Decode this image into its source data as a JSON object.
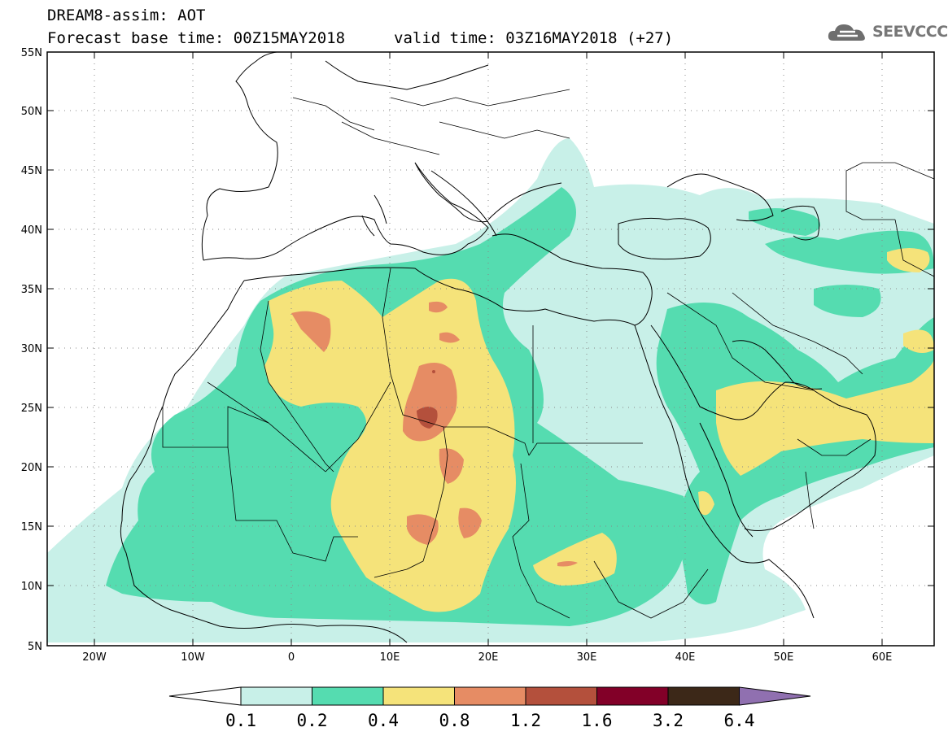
{
  "header": {
    "title": "DREAM8-assim: AOT",
    "base_time": "Forecast base time: 00Z15MAY2018",
    "valid_time": "valid time: 03Z16MAY2018 (+27)"
  },
  "logo": {
    "icon": "cloud-icon",
    "text": "SEEVCCC",
    "color": "#777777"
  },
  "map": {
    "lat_labels": [
      "55N",
      "50N",
      "45N",
      "40N",
      "35N",
      "30N",
      "25N",
      "20N",
      "15N",
      "10N",
      "5N"
    ],
    "lon_labels": [
      "20W",
      "10W",
      "0",
      "10E",
      "20E",
      "30E",
      "40E",
      "50E",
      "60E"
    ],
    "lat_range": [
      5,
      55
    ],
    "lon_range": [
      -25,
      65
    ],
    "grid": "dotted"
  },
  "colorbar": {
    "labels": [
      "0.1",
      "0.2",
      "0.4",
      "0.8",
      "1.2",
      "1.6",
      "3.2",
      "6.4"
    ],
    "colors": [
      "#c8f0e8",
      "#55dcb0",
      "#f5e37a",
      "#e68c64",
      "#b4503c",
      "#820028",
      "#3c2818",
      "#9070b0"
    ],
    "under_color": "#ffffff"
  }
}
